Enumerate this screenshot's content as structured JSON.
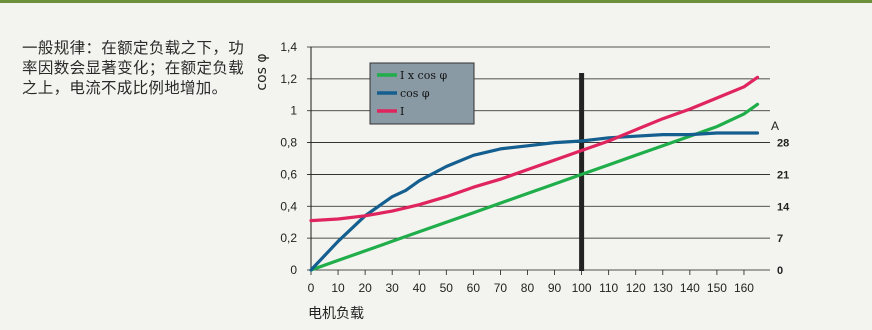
{
  "note": "一般规律：在额定负载之下，功率因数会显著变化；在额定负载之上，电流不成比例地增加。",
  "chart_data": {
    "type": "line",
    "xlabel": "电机负载",
    "ylabel": "cos φ",
    "xlim": [
      0,
      165
    ],
    "ylim": [
      0,
      1.4
    ],
    "x_ticks": [
      "0",
      "10",
      "20",
      "30",
      "40",
      "50",
      "60",
      "70",
      "80",
      "90",
      "100",
      "110",
      "120",
      "130",
      "140",
      "150",
      "160"
    ],
    "y_ticks": [
      {
        "v": 0,
        "label": "0"
      },
      {
        "v": 0.2,
        "label": "0,2"
      },
      {
        "v": 0.4,
        "label": "0,4"
      },
      {
        "v": 0.6,
        "label": "0,6"
      },
      {
        "v": 0.8,
        "label": "0,8"
      },
      {
        "v": 1.0,
        "label": "1"
      },
      {
        "v": 1.2,
        "label": "1,2"
      },
      {
        "v": 1.4,
        "label": "1,4"
      }
    ],
    "right_axis_label": "A",
    "right_ticks": [
      {
        "v": 0,
        "label": "0"
      },
      {
        "v": 0.2,
        "label": "7"
      },
      {
        "v": 0.4,
        "label": "14"
      },
      {
        "v": 0.6,
        "label": "21"
      },
      {
        "v": 0.8,
        "label": "28"
      }
    ],
    "marker_x": 100,
    "grid": "horizontal",
    "legend_position": "top-left",
    "series": [
      {
        "name": "I x cos φ",
        "color": "#1fae4a",
        "x": [
          0,
          10,
          20,
          30,
          40,
          50,
          60,
          70,
          80,
          90,
          100,
          110,
          120,
          130,
          140,
          150,
          160,
          165
        ],
        "y": [
          0,
          0.06,
          0.12,
          0.18,
          0.24,
          0.3,
          0.36,
          0.42,
          0.48,
          0.54,
          0.6,
          0.66,
          0.72,
          0.78,
          0.84,
          0.9,
          0.98,
          1.04
        ]
      },
      {
        "name": "cos φ",
        "color": "#145f8f",
        "x": [
          0,
          10,
          20,
          30,
          35,
          40,
          50,
          60,
          70,
          80,
          90,
          100,
          110,
          120,
          130,
          140,
          150,
          160,
          165
        ],
        "y": [
          0,
          0.18,
          0.34,
          0.46,
          0.5,
          0.56,
          0.65,
          0.72,
          0.76,
          0.78,
          0.8,
          0.81,
          0.83,
          0.84,
          0.85,
          0.85,
          0.86,
          0.86,
          0.86
        ]
      },
      {
        "name": "I",
        "color": "#e0245e",
        "x": [
          0,
          10,
          20,
          30,
          40,
          50,
          60,
          70,
          80,
          90,
          100,
          110,
          120,
          130,
          140,
          150,
          160,
          165
        ],
        "y": [
          0.31,
          0.32,
          0.34,
          0.37,
          0.41,
          0.46,
          0.52,
          0.57,
          0.63,
          0.69,
          0.75,
          0.81,
          0.88,
          0.95,
          1.01,
          1.08,
          1.15,
          1.21
        ]
      }
    ]
  }
}
